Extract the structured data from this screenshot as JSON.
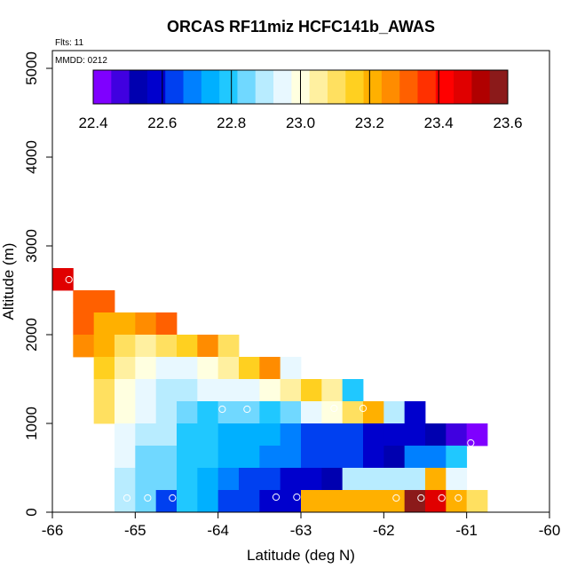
{
  "chart_data": {
    "type": "heatmap",
    "title": "ORCAS RF11miz HCFC141b_AWAS",
    "flts_label": "Flts: 11",
    "mmdd_label": "MMDD: 0212",
    "xlabel": "Latitude (deg N)",
    "ylabel": "Altitude (m)",
    "xlim": [
      -66,
      -60
    ],
    "ylim": [
      0,
      5200
    ],
    "xticks": [
      -66,
      -65,
      -64,
      -63,
      -62,
      -61,
      -60
    ],
    "yticks": [
      0,
      1000,
      2000,
      3000,
      4000,
      5000
    ],
    "colorbar": {
      "min": 22.4,
      "max": 23.6,
      "ticks": [
        "22.4",
        "22.6",
        "22.8",
        "23.0",
        "23.2",
        "23.4",
        "23.6"
      ],
      "colors": [
        "#7f00ff",
        "#4000e0",
        "#0000b0",
        "#0000cd",
        "#0040f0",
        "#0080ff",
        "#00b0ff",
        "#20c8ff",
        "#70d8ff",
        "#b8ecff",
        "#e8f8ff",
        "#ffffe0",
        "#fff0a0",
        "#ffe060",
        "#ffd020",
        "#ffb000",
        "#ff8c00",
        "#ff6000",
        "#ff3000",
        "#ff0000",
        "#e00000",
        "#b00000",
        "#8b1a1a"
      ]
    },
    "cell_width_deg": 0.25,
    "cell_height_m": 250,
    "cells": [
      [
        -66.0,
        2500,
        23.45
      ],
      [
        -65.75,
        2250,
        23.3
      ],
      [
        -65.5,
        2250,
        23.3
      ],
      [
        -65.75,
        2000,
        23.3
      ],
      [
        -65.5,
        2000,
        23.2
      ],
      [
        -65.25,
        2000,
        23.2
      ],
      [
        -65.0,
        2000,
        23.25
      ],
      [
        -64.75,
        2000,
        23.3
      ],
      [
        -65.75,
        1750,
        23.25
      ],
      [
        -65.5,
        1750,
        23.2
      ],
      [
        -65.25,
        1750,
        23.1
      ],
      [
        -65.0,
        1750,
        23.05
      ],
      [
        -64.75,
        1750,
        23.1
      ],
      [
        -64.5,
        1750,
        23.15
      ],
      [
        -64.25,
        1750,
        23.25
      ],
      [
        -64.0,
        1750,
        23.1
      ],
      [
        -65.5,
        1500,
        23.15
      ],
      [
        -65.25,
        1500,
        23.05
      ],
      [
        -65.0,
        1500,
        22.98
      ],
      [
        -64.75,
        1500,
        22.95
      ],
      [
        -64.5,
        1500,
        22.95
      ],
      [
        -64.25,
        1500,
        23.02
      ],
      [
        -64.0,
        1500,
        23.05
      ],
      [
        -63.75,
        1500,
        23.18
      ],
      [
        -63.5,
        1500,
        23.25
      ],
      [
        -63.25,
        1500,
        22.93
      ],
      [
        -65.5,
        1250,
        23.12
      ],
      [
        -65.25,
        1250,
        23.02
      ],
      [
        -65.0,
        1250,
        22.94
      ],
      [
        -64.75,
        1250,
        22.9
      ],
      [
        -64.5,
        1250,
        22.9
      ],
      [
        -64.25,
        1250,
        22.95
      ],
      [
        -64.0,
        1250,
        22.93
      ],
      [
        -63.75,
        1250,
        22.97
      ],
      [
        -63.5,
        1250,
        22.99
      ],
      [
        -63.25,
        1250,
        23.04
      ],
      [
        -63.0,
        1250,
        23.18
      ],
      [
        -62.75,
        1250,
        23.07
      ],
      [
        -62.5,
        1250,
        22.78
      ],
      [
        -65.5,
        1000,
        23.08
      ],
      [
        -65.25,
        1000,
        22.98
      ],
      [
        -65.0,
        1000,
        22.95
      ],
      [
        -64.75,
        1000,
        22.9
      ],
      [
        -64.5,
        1000,
        22.84
      ],
      [
        -64.25,
        1000,
        22.8
      ],
      [
        -64.0,
        1000,
        22.83
      ],
      [
        -63.75,
        1000,
        22.86
      ],
      [
        -63.5,
        1000,
        22.8
      ],
      [
        -63.25,
        1000,
        22.86
      ],
      [
        -63.0,
        1000,
        22.93
      ],
      [
        -62.75,
        1000,
        23.0
      ],
      [
        -62.5,
        1000,
        23.08
      ],
      [
        -62.25,
        1000,
        23.2
      ],
      [
        -62.0,
        1000,
        22.88
      ],
      [
        -61.75,
        1000,
        22.58
      ],
      [
        -65.25,
        750,
        22.97
      ],
      [
        -65.0,
        750,
        22.92
      ],
      [
        -64.75,
        750,
        22.88
      ],
      [
        -64.5,
        750,
        22.8
      ],
      [
        -64.25,
        750,
        22.78
      ],
      [
        -64.0,
        750,
        22.73
      ],
      [
        -63.75,
        750,
        22.73
      ],
      [
        -63.5,
        750,
        22.72
      ],
      [
        -63.25,
        750,
        22.69
      ],
      [
        -63.0,
        750,
        22.66
      ],
      [
        -62.75,
        750,
        22.65
      ],
      [
        -62.5,
        750,
        22.61
      ],
      [
        -62.25,
        750,
        22.58
      ],
      [
        -62.0,
        750,
        22.57
      ],
      [
        -61.75,
        750,
        22.56
      ],
      [
        -61.5,
        750,
        22.52
      ],
      [
        -61.25,
        750,
        22.48
      ],
      [
        -61.0,
        750,
        22.42
      ],
      [
        -65.25,
        500,
        22.95
      ],
      [
        -65.0,
        500,
        22.86
      ],
      [
        -64.75,
        500,
        22.82
      ],
      [
        -64.5,
        500,
        22.8
      ],
      [
        -64.25,
        500,
        22.79
      ],
      [
        -64.0,
        500,
        22.74
      ],
      [
        -63.75,
        500,
        22.74
      ],
      [
        -63.5,
        500,
        22.7
      ],
      [
        -63.25,
        500,
        22.68
      ],
      [
        -63.0,
        500,
        22.66
      ],
      [
        -62.75,
        500,
        22.64
      ],
      [
        -62.5,
        500,
        22.62
      ],
      [
        -62.25,
        500,
        22.6
      ],
      [
        -62.0,
        500,
        22.54
      ],
      [
        -61.75,
        500,
        22.7
      ],
      [
        -61.5,
        500,
        22.7
      ],
      [
        -61.25,
        500,
        22.8
      ],
      [
        -65.25,
        250,
        22.92
      ],
      [
        -65.0,
        250,
        22.84
      ],
      [
        -64.75,
        250,
        22.82
      ],
      [
        -64.5,
        250,
        22.79
      ],
      [
        -64.25,
        250,
        22.74
      ],
      [
        -64.0,
        250,
        22.71
      ],
      [
        -63.75,
        250,
        22.64
      ],
      [
        -63.5,
        250,
        22.63
      ],
      [
        -63.25,
        250,
        22.6
      ],
      [
        -63.0,
        250,
        22.58
      ],
      [
        -62.75,
        250,
        22.55
      ],
      [
        -62.5,
        250,
        22.92
      ],
      [
        -62.25,
        250,
        22.92
      ],
      [
        -62.0,
        250,
        22.92
      ],
      [
        -61.75,
        250,
        22.92
      ],
      [
        -61.5,
        250,
        23.2
      ],
      [
        -61.25,
        250,
        22.97
      ],
      [
        -65.25,
        0,
        22.88
      ],
      [
        -65.0,
        0,
        22.82
      ],
      [
        -64.75,
        0,
        22.62
      ],
      [
        -64.5,
        0,
        22.78
      ],
      [
        -64.25,
        0,
        22.72
      ],
      [
        -64.0,
        0,
        22.65
      ],
      [
        -63.75,
        0,
        22.63
      ],
      [
        -63.5,
        0,
        22.6
      ],
      [
        -63.25,
        0,
        22.58
      ],
      [
        -63.0,
        0,
        23.2
      ],
      [
        -62.75,
        0,
        23.2
      ],
      [
        -62.5,
        0,
        23.2
      ],
      [
        -62.25,
        0,
        23.2
      ],
      [
        -62.0,
        0,
        23.2
      ],
      [
        -61.75,
        0,
        23.55
      ],
      [
        -61.5,
        0,
        23.45
      ],
      [
        -61.25,
        0,
        23.2
      ],
      [
        -61.0,
        0,
        23.1
      ]
    ],
    "markers": [
      [
        -65.8,
        2620
      ],
      [
        -65.1,
        160
      ],
      [
        -64.85,
        160
      ],
      [
        -64.55,
        160
      ],
      [
        -63.95,
        1160
      ],
      [
        -63.65,
        1160
      ],
      [
        -63.3,
        170
      ],
      [
        -63.05,
        170
      ],
      [
        -62.6,
        1170
      ],
      [
        -62.25,
        1170
      ],
      [
        -61.85,
        160
      ],
      [
        -61.55,
        160
      ],
      [
        -61.3,
        160
      ],
      [
        -61.1,
        160
      ],
      [
        -60.95,
        780
      ]
    ]
  }
}
